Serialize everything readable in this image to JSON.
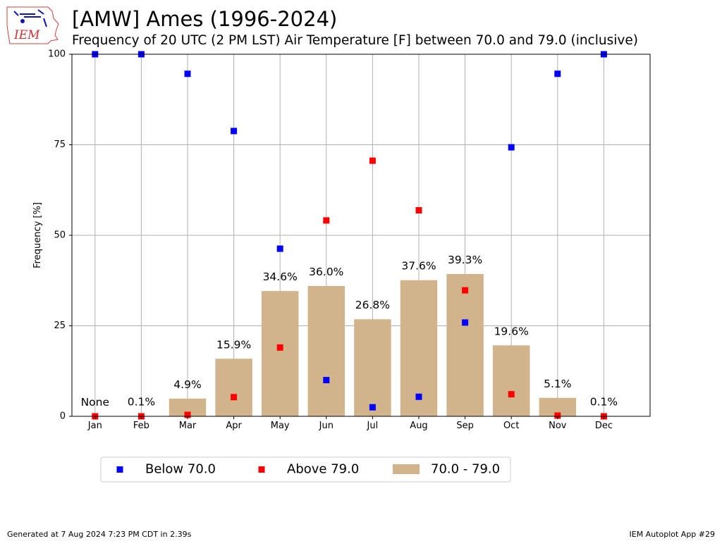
{
  "header": {
    "title": "[AMW] Ames (1996-2024)",
    "subtitle": "Frequency of 20 UTC (2 PM LST) Air Temperature [F] between 70.0 and 79.0 (inclusive)",
    "logo_text": "IEM"
  },
  "chart_data": {
    "type": "bar",
    "categories": [
      "Jan",
      "Feb",
      "Mar",
      "Apr",
      "May",
      "Jun",
      "Jul",
      "Aug",
      "Sep",
      "Oct",
      "Nov",
      "Dec"
    ],
    "ylabel": "Frequency [%]",
    "ylim": [
      0,
      100
    ],
    "yticks": [
      0,
      25,
      50,
      75,
      100
    ],
    "grid": true,
    "legend_position": "bottom",
    "series": [
      {
        "name": "Below 70.0",
        "type": "scatter",
        "marker": "square",
        "color": "#0000ff",
        "values": [
          100,
          100,
          94.6,
          78.8,
          46.3,
          10.0,
          2.5,
          5.4,
          25.9,
          74.3,
          94.6,
          100
        ]
      },
      {
        "name": "Above 79.0",
        "type": "scatter",
        "marker": "square",
        "color": "#ff0000",
        "values": [
          0,
          0,
          0.4,
          5.3,
          19.0,
          54.1,
          70.6,
          56.9,
          34.8,
          6.1,
          0.2,
          0
        ]
      },
      {
        "name": "70.0 - 79.0",
        "type": "bar",
        "color": "#d2b48c",
        "values": [
          0,
          0.1,
          4.9,
          15.9,
          34.6,
          36.0,
          26.8,
          37.6,
          39.3,
          19.6,
          5.1,
          0.1
        ],
        "labels": [
          "None",
          "0.1%",
          "4.9%",
          "15.9%",
          "34.6%",
          "36.0%",
          "26.8%",
          "37.6%",
          "39.3%",
          "19.6%",
          "5.1%",
          "0.1%"
        ]
      }
    ]
  },
  "footer": {
    "generated": "Generated at 7 Aug 2024 7:23 PM CDT in 2.39s",
    "app": "IEM Autoplot App #29"
  }
}
